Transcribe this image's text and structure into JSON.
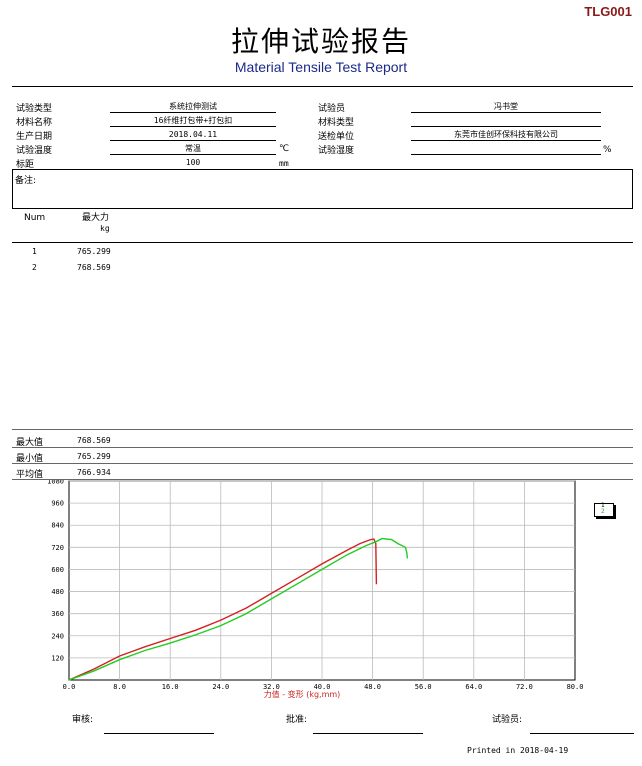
{
  "report": {
    "code": "TLG001",
    "title_cn": "拉伸试验报告",
    "title_en": "Material Tensile Test Report"
  },
  "info": {
    "test_type_label": "试验类型",
    "test_type": "系统拉伸测试",
    "material_name_label": "材料名称",
    "material_name": "16纤维打包带+打包扣",
    "date_label": "生产日期",
    "date": "2018.04.11",
    "temp_label": "试验温度",
    "temp": "常温",
    "temp_unit": "℃",
    "gauge_label": "标距",
    "gauge": "100",
    "gauge_unit": "mm",
    "tester_label": "试验员",
    "tester": "冯书堂",
    "material_type_label": "材料类型",
    "material_type": "",
    "client_label": "送检单位",
    "client": "东莞市佳创环保科技有限公司",
    "humidity_label": "试验湿度",
    "humidity": "",
    "humidity_unit": "%",
    "remarks_label": "备注:"
  },
  "results": {
    "col_num": "Num",
    "col_force": "最大力",
    "col_force_unit": "kg",
    "rows": [
      {
        "num": "1",
        "force": "765.299"
      },
      {
        "num": "2",
        "force": "768.569"
      }
    ]
  },
  "stats": {
    "max_label": "最大值",
    "max": "768.569",
    "min_label": "最小值",
    "min": "765.299",
    "avg_label": "平均值",
    "avg": "766.934"
  },
  "chart_data": {
    "type": "line",
    "xlabel": "力值 - 变形 (kg,mm)",
    "ylabel": "",
    "xlim": [
      0,
      80
    ],
    "ylim": [
      0,
      1080
    ],
    "x_ticks": [
      "0.0",
      "8.0",
      "16.0",
      "24.0",
      "32.0",
      "40.0",
      "48.0",
      "56.0",
      "64.0",
      "72.0",
      "80.0"
    ],
    "y_ticks": [
      "120",
      "240",
      "360",
      "480",
      "600",
      "720",
      "840",
      "960",
      "1080"
    ],
    "grid": true,
    "legend_labels": [
      "1",
      "2"
    ],
    "series": [
      {
        "color": "#d42020",
        "x": [
          0,
          4,
          8,
          12,
          16,
          20,
          24,
          28,
          32,
          36,
          40,
          44,
          46,
          47.5,
          48.2,
          48.5,
          48.6
        ],
        "y": [
          0,
          60,
          130,
          180,
          225,
          270,
          325,
          390,
          470,
          550,
          630,
          705,
          740,
          760,
          765,
          740,
          520
        ]
      },
      {
        "color": "#22cc22",
        "x": [
          0,
          4,
          8,
          12,
          16,
          20,
          24,
          28,
          32,
          36,
          40,
          44,
          47,
          48.5,
          49.5,
          51,
          52,
          53.2,
          53.4,
          53.5
        ],
        "y": [
          0,
          50,
          110,
          160,
          200,
          245,
          295,
          360,
          440,
          520,
          600,
          680,
          730,
          750,
          768,
          762,
          740,
          720,
          690,
          660
        ]
      }
    ]
  },
  "footer": {
    "review_label": "审核:",
    "approve_label": "批准:",
    "tester_label": "试验员:",
    "printed": "Printed in 2018-04-19"
  }
}
